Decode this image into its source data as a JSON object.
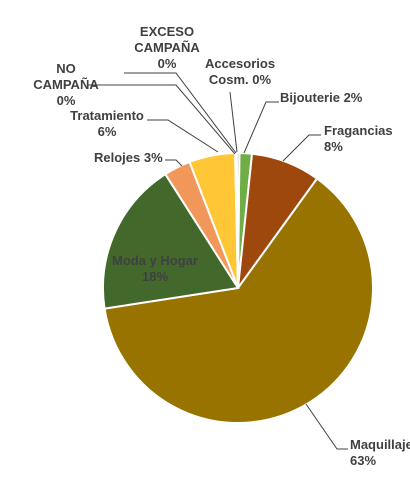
{
  "chart_data": {
    "type": "pie",
    "title": "",
    "legend": "none",
    "slices": [
      {
        "label_lines": [
          "Bijouterie 2%"
        ],
        "value": 1.5,
        "color": "#70AD47"
      },
      {
        "label_lines": [
          "Fragancias",
          "8%"
        ],
        "value": 8.3,
        "color": "#9E480E"
      },
      {
        "label_lines": [
          "Maquillaje",
          "63%"
        ],
        "value": 62.6,
        "color": "#997300"
      },
      {
        "label_lines": [
          "Moda y Hogar",
          "18%"
        ],
        "value": 18.4,
        "color": "#43682B"
      },
      {
        "label_lines": [
          "Relojes 3%"
        ],
        "value": 3.2,
        "color": "#F1975A"
      },
      {
        "label_lines": [
          "Tratamiento",
          "6%"
        ],
        "value": 5.5,
        "color": "#FFC736"
      },
      {
        "label_lines": [
          "NO",
          "CAMPAÑA",
          "0%"
        ],
        "value": 0.1,
        "color": "#4472C4"
      },
      {
        "label_lines": [
          "EXCESO",
          "CAMPAÑA",
          "0%"
        ],
        "value": 0.1,
        "color": "#ED7D31"
      },
      {
        "label_lines": [
          "Accesorios",
          "Cosm. 0%"
        ],
        "value": 0.3,
        "color": "#A5A5A5"
      }
    ]
  }
}
